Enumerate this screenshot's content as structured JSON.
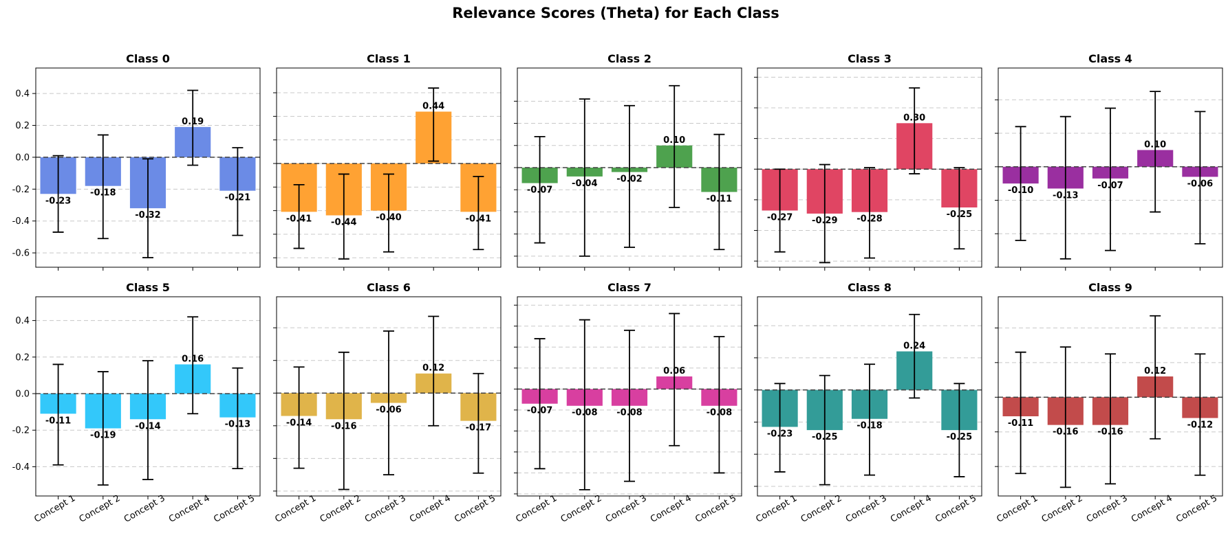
{
  "title": "Relevance Scores (Theta) for Each Class",
  "chart_data": {
    "type": "bar",
    "title": "Relevance Scores (Theta) for Each Class",
    "categories": [
      "Concept 1",
      "Concept 2",
      "Concept 3",
      "Concept 4",
      "Concept 5"
    ],
    "shared_y_ticks": [
      "0.4",
      "0.2",
      "0.0",
      "-0.2",
      "-0.4",
      "-0.6"
    ],
    "panels": [
      {
        "title": "Class 0",
        "color": "#6B8BE6",
        "values": [
          -0.23,
          -0.18,
          -0.32,
          0.19,
          -0.21
        ],
        "labels": [
          "-0.23",
          "-0.18",
          "-0.32",
          "0.19",
          "-0.21"
        ],
        "err_low": [
          -0.47,
          -0.51,
          -0.63,
          -0.05,
          -0.49
        ],
        "err_high": [
          0.01,
          0.14,
          -0.01,
          0.42,
          0.06
        ],
        "ylim": [
          -0.69,
          0.56
        ],
        "yticks": [
          0.4,
          0.2,
          0.0,
          -0.2,
          -0.4,
          -0.6
        ],
        "show_yticklabels": true
      },
      {
        "title": "Class 1",
        "color": "#FFA233",
        "values": [
          -0.41,
          -0.44,
          -0.4,
          0.44,
          -0.41
        ],
        "labels": [
          "-0.41",
          "-0.44",
          "-0.40",
          "0.44",
          "-0.41"
        ],
        "err_low": [
          -0.72,
          -0.81,
          -0.75,
          0.02,
          -0.73
        ],
        "err_high": [
          -0.18,
          -0.09,
          -0.09,
          0.64,
          -0.11
        ],
        "ylim": [
          -0.88,
          0.81
        ],
        "yticks": [
          0.6,
          0.4,
          0.2,
          0.0,
          -0.2,
          -0.4,
          -0.6,
          -0.8
        ],
        "show_yticklabels": false
      },
      {
        "title": "Class 2",
        "color": "#4EA24E",
        "values": [
          -0.07,
          -0.04,
          -0.02,
          0.1,
          -0.11
        ],
        "labels": [
          "-0.07",
          "-0.04",
          "-0.02",
          "0.10",
          "-0.11"
        ],
        "err_low": [
          -0.34,
          -0.4,
          -0.36,
          -0.18,
          -0.37
        ],
        "err_high": [
          0.14,
          0.31,
          0.28,
          0.37,
          0.15
        ],
        "ylim": [
          -0.45,
          0.45
        ],
        "yticks": [
          0.3,
          0.2,
          0.1,
          0.0,
          -0.1,
          -0.2,
          -0.3,
          -0.4
        ],
        "show_yticklabels": false
      },
      {
        "title": "Class 3",
        "color": "#E04563",
        "values": [
          -0.27,
          -0.29,
          -0.28,
          0.3,
          -0.25
        ],
        "labels": [
          "-0.27",
          "-0.29",
          "-0.28",
          "0.30",
          "-0.25"
        ],
        "err_low": [
          -0.54,
          -0.61,
          -0.58,
          -0.03,
          -0.52
        ],
        "err_high": [
          0.0,
          0.03,
          0.01,
          0.53,
          0.01
        ],
        "ylim": [
          -0.64,
          0.66
        ],
        "yticks": [
          0.6,
          0.4,
          0.2,
          0.0,
          -0.2,
          -0.4,
          -0.6
        ],
        "show_yticklabels": false
      },
      {
        "title": "Class 4",
        "color": "#9A2FA0",
        "values": [
          -0.1,
          -0.13,
          -0.07,
          0.1,
          -0.06
        ],
        "labels": [
          "-0.10",
          "-0.13",
          "-0.07",
          "0.10",
          "-0.06"
        ],
        "err_low": [
          -0.44,
          -0.55,
          -0.5,
          -0.27,
          -0.46
        ],
        "err_high": [
          0.24,
          0.3,
          0.35,
          0.45,
          0.33
        ],
        "ylim": [
          -0.6,
          0.59
        ],
        "yticks": [
          0.4,
          0.2,
          0.0,
          -0.2,
          -0.4,
          -0.6
        ],
        "show_yticklabels": false
      },
      {
        "title": "Class 5",
        "color": "#33C8FA",
        "values": [
          -0.11,
          -0.19,
          -0.14,
          0.16,
          -0.13
        ],
        "labels": [
          "-0.11",
          "-0.19",
          "-0.14",
          "0.16",
          "-0.13"
        ],
        "err_low": [
          -0.39,
          -0.5,
          -0.47,
          -0.11,
          -0.41
        ],
        "err_high": [
          0.16,
          0.12,
          0.18,
          0.42,
          0.14
        ],
        "ylim": [
          -0.56,
          0.53
        ],
        "yticks": [
          0.4,
          0.2,
          0.0,
          -0.2,
          -0.4
        ],
        "show_yticklabels": true
      },
      {
        "title": "Class 6",
        "color": "#E0B44A",
        "values": [
          -0.14,
          -0.16,
          -0.06,
          0.12,
          -0.17
        ],
        "labels": [
          "-0.14",
          "-0.16",
          "-0.06",
          "0.12",
          "-0.17"
        ],
        "err_low": [
          -0.46,
          -0.59,
          -0.5,
          -0.2,
          -0.49
        ],
        "err_high": [
          0.16,
          0.25,
          0.38,
          0.47,
          0.12
        ],
        "ylim": [
          -0.63,
          0.59
        ],
        "yticks": [
          0.4,
          0.2,
          0.0,
          -0.2,
          -0.4,
          -0.6
        ],
        "show_yticklabels": false
      },
      {
        "title": "Class 7",
        "color": "#D83FA0",
        "values": [
          -0.07,
          -0.08,
          -0.08,
          0.06,
          -0.08
        ],
        "labels": [
          "-0.07",
          "-0.08",
          "-0.08",
          "0.06",
          "-0.08"
        ],
        "err_low": [
          -0.38,
          -0.48,
          -0.44,
          -0.27,
          -0.4
        ],
        "err_high": [
          0.24,
          0.33,
          0.28,
          0.36,
          0.25
        ],
        "ylim": [
          -0.51,
          0.44
        ],
        "yticks": [
          0.4,
          0.3,
          0.2,
          0.1,
          0.0,
          -0.1,
          -0.2,
          -0.3,
          -0.4,
          -0.5
        ],
        "show_yticklabels": false
      },
      {
        "title": "Class 8",
        "color": "#339C98",
        "values": [
          -0.23,
          -0.25,
          -0.18,
          0.24,
          -0.25
        ],
        "labels": [
          "-0.23",
          "-0.25",
          "-0.18",
          "0.24",
          "-0.25"
        ],
        "err_low": [
          -0.51,
          -0.59,
          -0.53,
          -0.05,
          -0.54
        ],
        "err_high": [
          0.04,
          0.09,
          0.16,
          0.47,
          0.04
        ],
        "ylim": [
          -0.66,
          0.58
        ],
        "yticks": [
          0.4,
          0.2,
          0.0,
          -0.2,
          -0.4,
          -0.6
        ],
        "show_yticklabels": false
      },
      {
        "title": "Class 9",
        "color": "#C24B4B",
        "values": [
          -0.11,
          -0.16,
          -0.16,
          0.12,
          -0.12
        ],
        "labels": [
          "-0.11",
          "-0.16",
          "-0.16",
          "0.12",
          "-0.12"
        ],
        "err_low": [
          -0.44,
          -0.52,
          -0.5,
          -0.24,
          -0.45
        ],
        "err_high": [
          0.26,
          0.29,
          0.25,
          0.47,
          0.25
        ],
        "ylim": [
          -0.57,
          0.58
        ],
        "yticks": [
          0.4,
          0.2,
          0.0,
          -0.2,
          -0.4
        ],
        "show_yticklabels": false
      }
    ]
  }
}
